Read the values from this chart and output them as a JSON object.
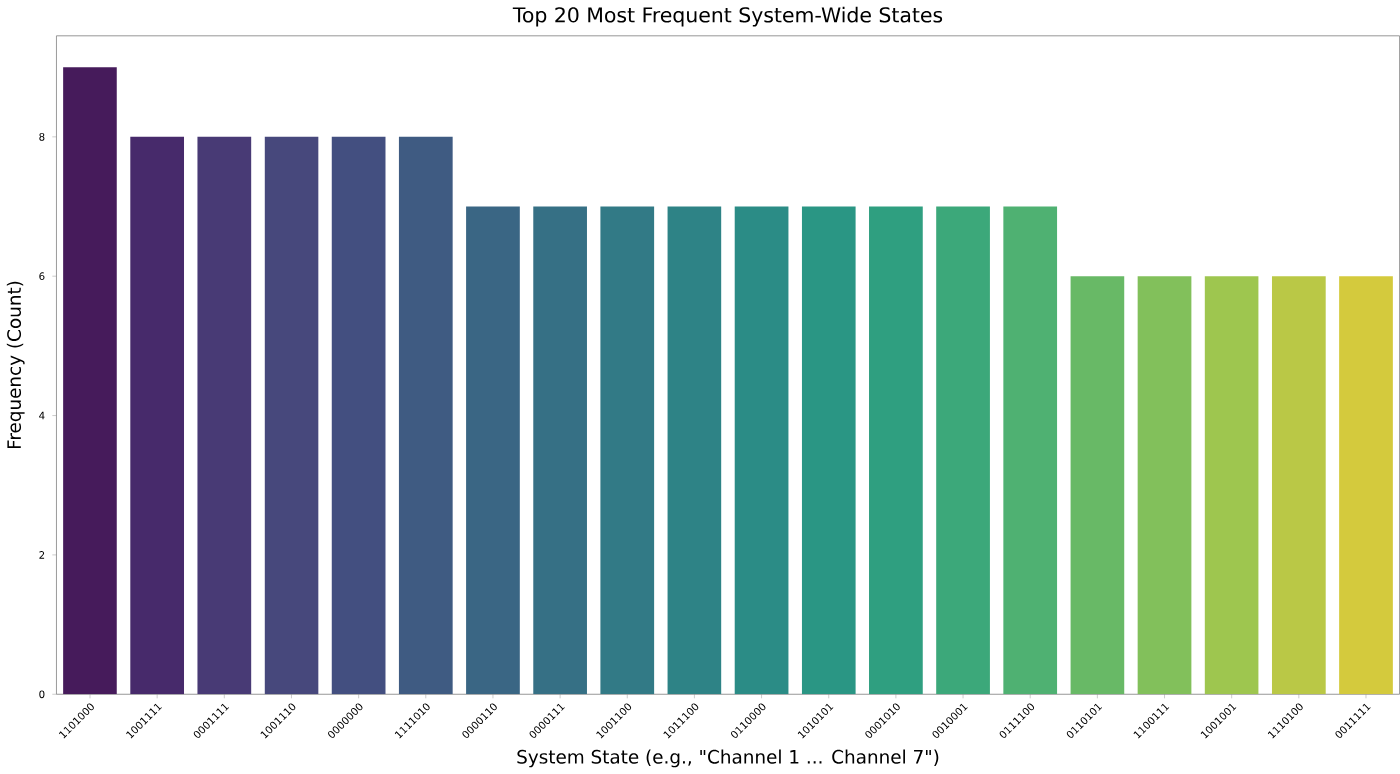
{
  "chart_data": {
    "type": "bar",
    "title": "Top 20 Most Frequent System-Wide States",
    "xlabel": "System State (e.g., \"Channel 1 ... Channel 7\")",
    "ylabel": "Frequency (Count)",
    "categories": [
      "1101000",
      "1001111",
      "0001111",
      "1001110",
      "0000000",
      "1111010",
      "0000110",
      "0000111",
      "1001100",
      "1011100",
      "0110000",
      "1010101",
      "0001010",
      "0010001",
      "0111100",
      "0110101",
      "1100111",
      "1001001",
      "1110100",
      "0011111"
    ],
    "values": [
      9,
      8,
      8,
      8,
      8,
      8,
      7,
      7,
      7,
      7,
      7,
      7,
      7,
      7,
      7,
      6,
      6,
      6,
      6,
      6
    ],
    "colors": [
      "#461b5b",
      "#472a6b",
      "#483a75",
      "#47487c",
      "#434f80",
      "#3f5b82",
      "#3a6684",
      "#367085",
      "#327a86",
      "#2e8386",
      "#2b8c86",
      "#2a9684",
      "#2f9f80",
      "#3ca87a",
      "#4fb172",
      "#68b966",
      "#82c05b",
      "#9ec64f",
      "#bac846",
      "#d4ca3d"
    ],
    "ylim": [
      0,
      9.45
    ],
    "yticks": [
      0,
      2,
      4,
      6,
      8
    ],
    "grid": false
  }
}
